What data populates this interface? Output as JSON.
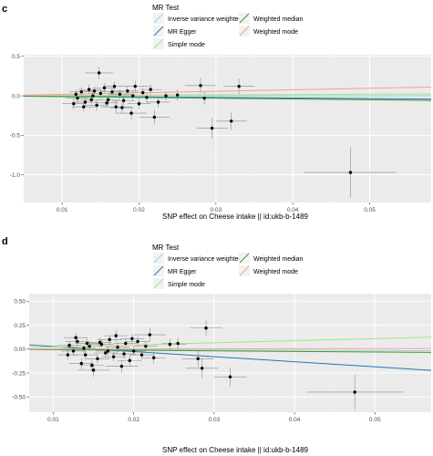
{
  "colors": {
    "panel_bg": "#ebebeb",
    "grid_major": "#ffffff",
    "grid_minor": "#f3f3f3",
    "point": "#000000",
    "errorbar": "#8c8c8c",
    "axis_text": "#4d4d4d",
    "legend_key_bg": "#f2f2f2"
  },
  "chart_data": [
    {
      "type": "scatter",
      "panel_label": "c",
      "title": "",
      "xlabel": "SNP effect on Cheese intake || id:ukb-b-1489",
      "ylabel": "",
      "xlim": [
        0.005,
        0.058
      ],
      "ylim": [
        -1.35,
        0.52
      ],
      "x_ticks": [
        0.01,
        0.02,
        0.03,
        0.04,
        0.05
      ],
      "x_tick_labels": [
        "0.01",
        "0.02",
        "0.03",
        "0.04",
        "0.05"
      ],
      "y_ticks": [
        0.5,
        0.0,
        -0.5,
        -1.0
      ],
      "y_tick_labels": [
        "0.5",
        "0.0",
        "-0.5",
        "-1.0"
      ],
      "grid": true,
      "legend": {
        "title": "MR Test",
        "position": "top",
        "entries": [
          {
            "label": "Inverse variance weighted",
            "color": "#a6cee3"
          },
          {
            "label": "MR Egger",
            "color": "#1f78b4"
          },
          {
            "label": "Simple mode",
            "color": "#b2df8a"
          },
          {
            "label": "Weighted median",
            "color": "#33a02c"
          },
          {
            "label": "Weighted mode",
            "color": "#fb9a99"
          }
        ]
      },
      "lines": [
        {
          "name": "Inverse variance weighted",
          "color": "#a6cee3",
          "slope": 0.0
        },
        {
          "name": "MR Egger",
          "color": "#1f78b4",
          "slope": -0.7
        },
        {
          "name": "Simple mode",
          "color": "#b2df8a",
          "slope": 0.4
        },
        {
          "name": "Weighted median",
          "color": "#33a02c",
          "slope": -1.0
        },
        {
          "name": "Weighted mode",
          "color": "#fb9a99",
          "slope": 1.9
        }
      ],
      "points": [
        {
          "x": 0.0148,
          "y": 0.29,
          "xe": 0.0018,
          "ye": 0.08
        },
        {
          "x": 0.0195,
          "y": 0.12,
          "xe": 0.002,
          "ye": 0.07
        },
        {
          "x": 0.028,
          "y": 0.13,
          "xe": 0.002,
          "ye": 0.1
        },
        {
          "x": 0.033,
          "y": 0.12,
          "xe": 0.002,
          "ye": 0.1
        },
        {
          "x": 0.0285,
          "y": -0.03,
          "xe": 0.002,
          "ye": 0.08
        },
        {
          "x": 0.025,
          "y": 0.01,
          "xe": 0.002,
          "ye": 0.07
        },
        {
          "x": 0.022,
          "y": -0.27,
          "xe": 0.002,
          "ye": 0.09
        },
        {
          "x": 0.0295,
          "y": -0.41,
          "xe": 0.002,
          "ye": 0.13
        },
        {
          "x": 0.032,
          "y": -0.32,
          "xe": 0.002,
          "ye": 0.11
        },
        {
          "x": 0.0475,
          "y": -0.97,
          "xe": 0.006,
          "ye": 0.32
        },
        {
          "x": 0.017,
          "y": -0.14,
          "xe": 0.002,
          "ye": 0.08
        },
        {
          "x": 0.019,
          "y": -0.22,
          "xe": 0.002,
          "ye": 0.08
        },
        {
          "x": 0.0115,
          "y": -0.1,
          "xe": 0.0015,
          "ye": 0.07
        },
        {
          "x": 0.012,
          "y": -0.03,
          "xe": 0.0015,
          "ye": 0.06
        },
        {
          "x": 0.0125,
          "y": 0.05,
          "xe": 0.0015,
          "ye": 0.06
        },
        {
          "x": 0.013,
          "y": -0.08,
          "xe": 0.0015,
          "ye": 0.06
        },
        {
          "x": 0.0135,
          "y": 0.08,
          "xe": 0.0015,
          "ye": 0.06
        },
        {
          "x": 0.014,
          "y": 0.0,
          "xe": 0.0015,
          "ye": 0.06
        },
        {
          "x": 0.0145,
          "y": -0.12,
          "xe": 0.0015,
          "ye": 0.07
        },
        {
          "x": 0.015,
          "y": 0.03,
          "xe": 0.0015,
          "ye": 0.06
        },
        {
          "x": 0.0155,
          "y": 0.1,
          "xe": 0.0015,
          "ye": 0.06
        },
        {
          "x": 0.016,
          "y": -0.05,
          "xe": 0.0015,
          "ye": 0.06
        },
        {
          "x": 0.0165,
          "y": 0.05,
          "xe": 0.0015,
          "ye": 0.06
        },
        {
          "x": 0.0175,
          "y": 0.02,
          "xe": 0.0015,
          "ye": 0.06
        },
        {
          "x": 0.018,
          "y": -0.06,
          "xe": 0.0015,
          "ye": 0.06
        },
        {
          "x": 0.0185,
          "y": 0.06,
          "xe": 0.0015,
          "ye": 0.06
        },
        {
          "x": 0.02,
          "y": -0.1,
          "xe": 0.0015,
          "ye": 0.07
        },
        {
          "x": 0.0205,
          "y": 0.04,
          "xe": 0.0015,
          "ye": 0.06
        },
        {
          "x": 0.021,
          "y": -0.02,
          "xe": 0.0015,
          "ye": 0.06
        },
        {
          "x": 0.0215,
          "y": 0.08,
          "xe": 0.0015,
          "ye": 0.06
        },
        {
          "x": 0.0225,
          "y": -0.08,
          "xe": 0.0015,
          "ye": 0.07
        },
        {
          "x": 0.0118,
          "y": 0.02,
          "xe": 0.0012,
          "ye": 0.05
        },
        {
          "x": 0.0128,
          "y": -0.14,
          "xe": 0.0015,
          "ye": 0.06
        },
        {
          "x": 0.0138,
          "y": -0.05,
          "xe": 0.0015,
          "ye": 0.06
        },
        {
          "x": 0.0142,
          "y": 0.06,
          "xe": 0.0015,
          "ye": 0.06
        },
        {
          "x": 0.0158,
          "y": -0.09,
          "xe": 0.0015,
          "ye": 0.06
        },
        {
          "x": 0.0168,
          "y": 0.12,
          "xe": 0.0015,
          "ye": 0.06
        },
        {
          "x": 0.0178,
          "y": -0.15,
          "xe": 0.0015,
          "ye": 0.07
        },
        {
          "x": 0.0192,
          "y": 0.0,
          "xe": 0.0015,
          "ye": 0.06
        },
        {
          "x": 0.0235,
          "y": 0.0,
          "xe": 0.0015,
          "ye": 0.06
        }
      ]
    },
    {
      "type": "scatter",
      "panel_label": "d",
      "title": "",
      "xlabel": "SNP effect on Cheese intake || id:ukb-b-1489",
      "ylabel": "",
      "xlim": [
        0.007,
        0.057
      ],
      "ylim": [
        -0.66,
        0.58
      ],
      "x_ticks": [
        0.01,
        0.02,
        0.03,
        0.04,
        0.05
      ],
      "x_tick_labels": [
        "0.01",
        "0.02",
        "0.03",
        "0.04",
        "0.05"
      ],
      "y_ticks": [
        0.5,
        0.25,
        0.0,
        -0.25,
        -0.5
      ],
      "y_tick_labels": [
        "0.50",
        "0.25",
        "0.00",
        "-0.25",
        "-0.50"
      ],
      "grid": true,
      "legend": {
        "title": "MR Test",
        "position": "top",
        "entries": [
          {
            "label": "Inverse variance weighted",
            "color": "#a6cee3"
          },
          {
            "label": "MR Egger",
            "color": "#1f78b4"
          },
          {
            "label": "Simple mode",
            "color": "#b2df8a"
          },
          {
            "label": "Weighted median",
            "color": "#33a02c"
          },
          {
            "label": "Weighted mode",
            "color": "#fb9a99"
          }
        ]
      },
      "lines": [
        {
          "name": "Inverse variance weighted",
          "color": "#a6cee3",
          "slope": -0.3
        },
        {
          "name": "MR Egger",
          "color": "#1f78b4",
          "slope": -5.3,
          "intercept": 0.08
        },
        {
          "name": "Simple mode",
          "color": "#b2df8a",
          "slope": 2.2
        },
        {
          "name": "Weighted median",
          "color": "#33a02c",
          "slope": -0.6
        },
        {
          "name": "Weighted mode",
          "color": "#fb9a99",
          "slope": 0.1
        }
      ],
      "points": [
        {
          "x": 0.029,
          "y": 0.22,
          "xe": 0.002,
          "ye": 0.08
        },
        {
          "x": 0.022,
          "y": 0.15,
          "xe": 0.002,
          "ye": 0.07
        },
        {
          "x": 0.028,
          "y": -0.1,
          "xe": 0.002,
          "ye": 0.09
        },
        {
          "x": 0.0285,
          "y": -0.2,
          "xe": 0.002,
          "ye": 0.1
        },
        {
          "x": 0.032,
          "y": -0.29,
          "xe": 0.002,
          "ye": 0.1
        },
        {
          "x": 0.0475,
          "y": -0.45,
          "xe": 0.006,
          "ye": 0.18
        },
        {
          "x": 0.0245,
          "y": 0.05,
          "xe": 0.002,
          "ye": 0.06
        },
        {
          "x": 0.0255,
          "y": 0.06,
          "xe": 0.002,
          "ye": 0.06
        },
        {
          "x": 0.015,
          "y": -0.22,
          "xe": 0.002,
          "ye": 0.07
        },
        {
          "x": 0.0185,
          "y": -0.18,
          "xe": 0.002,
          "ye": 0.07
        },
        {
          "x": 0.0135,
          "y": -0.15,
          "xe": 0.0015,
          "ye": 0.06
        },
        {
          "x": 0.012,
          "y": 0.04,
          "xe": 0.0015,
          "ye": 0.05
        },
        {
          "x": 0.0125,
          "y": -0.02,
          "xe": 0.0015,
          "ye": 0.05
        },
        {
          "x": 0.013,
          "y": 0.08,
          "xe": 0.0015,
          "ye": 0.05
        },
        {
          "x": 0.014,
          "y": -0.06,
          "xe": 0.0015,
          "ye": 0.05
        },
        {
          "x": 0.0145,
          "y": 0.03,
          "xe": 0.0015,
          "ye": 0.05
        },
        {
          "x": 0.0155,
          "y": -0.1,
          "xe": 0.0015,
          "ye": 0.05
        },
        {
          "x": 0.016,
          "y": 0.05,
          "xe": 0.0015,
          "ye": 0.05
        },
        {
          "x": 0.0165,
          "y": -0.04,
          "xe": 0.0015,
          "ye": 0.05
        },
        {
          "x": 0.017,
          "y": 0.1,
          "xe": 0.0015,
          "ye": 0.05
        },
        {
          "x": 0.0175,
          "y": -0.08,
          "xe": 0.0015,
          "ye": 0.05
        },
        {
          "x": 0.018,
          "y": 0.02,
          "xe": 0.0015,
          "ye": 0.05
        },
        {
          "x": 0.019,
          "y": 0.06,
          "xe": 0.0015,
          "ye": 0.05
        },
        {
          "x": 0.0195,
          "y": -0.12,
          "xe": 0.0015,
          "ye": 0.06
        },
        {
          "x": 0.02,
          "y": -0.02,
          "xe": 0.0015,
          "ye": 0.05
        },
        {
          "x": 0.0205,
          "y": 0.08,
          "xe": 0.0015,
          "ye": 0.05
        },
        {
          "x": 0.021,
          "y": -0.06,
          "xe": 0.0015,
          "ye": 0.05
        },
        {
          "x": 0.0215,
          "y": 0.03,
          "xe": 0.0015,
          "ye": 0.05
        },
        {
          "x": 0.0118,
          "y": -0.06,
          "xe": 0.0012,
          "ye": 0.05
        },
        {
          "x": 0.0128,
          "y": 0.12,
          "xe": 0.0015,
          "ye": 0.05
        },
        {
          "x": 0.0138,
          "y": 0.01,
          "xe": 0.0015,
          "ye": 0.05
        },
        {
          "x": 0.0148,
          "y": -0.17,
          "xe": 0.0015,
          "ye": 0.06
        },
        {
          "x": 0.0158,
          "y": 0.07,
          "xe": 0.0015,
          "ye": 0.05
        },
        {
          "x": 0.0168,
          "y": -0.02,
          "xe": 0.0015,
          "ye": 0.05
        },
        {
          "x": 0.0178,
          "y": 0.14,
          "xe": 0.0015,
          "ye": 0.06
        },
        {
          "x": 0.0188,
          "y": -0.05,
          "xe": 0.0015,
          "ye": 0.05
        },
        {
          "x": 0.0198,
          "y": 0.11,
          "xe": 0.0015,
          "ye": 0.05
        },
        {
          "x": 0.0142,
          "y": 0.06,
          "xe": 0.0015,
          "ye": 0.05
        },
        {
          "x": 0.0225,
          "y": -0.09,
          "xe": 0.0015,
          "ye": 0.06
        }
      ]
    }
  ]
}
